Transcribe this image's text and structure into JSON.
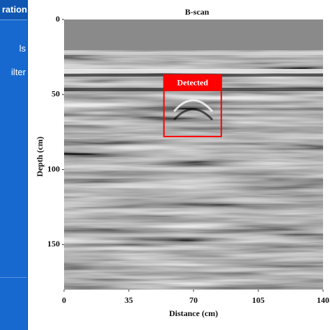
{
  "sidebar": {
    "header": "ration",
    "items": [
      "ls",
      "ilter"
    ]
  },
  "chart_data": {
    "type": "heatmap",
    "title": "B-scan",
    "x_label": "Distance (cm)",
    "y_label": "Depth (cm)",
    "xlim": [
      0,
      140
    ],
    "xticks": [
      0,
      35,
      70,
      105,
      140
    ],
    "ylim": [
      0,
      180
    ],
    "yticks": [
      0,
      50,
      100,
      150
    ],
    "detection": {
      "label": "Detected",
      "x": [
        54,
        85
      ],
      "y": [
        37,
        78
      ],
      "color": "#ff0000"
    }
  }
}
